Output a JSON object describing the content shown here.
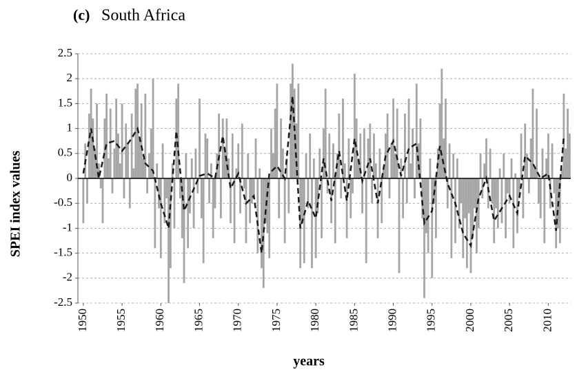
{
  "chart_data": {
    "type": "bar",
    "panel_label": "(c)",
    "title": "South Africa",
    "x_label": "years",
    "y_label": "SPEI index values",
    "xlim": [
      1949.3,
      2012.9
    ],
    "xticks": [
      1950,
      1955,
      1960,
      1965,
      1970,
      1975,
      1980,
      1985,
      1990,
      1995,
      2000,
      2005,
      2010
    ],
    "ylim": [
      -2.5,
      2.5
    ],
    "yticks": [
      2.5,
      2,
      1.5,
      1,
      0.5,
      0,
      -0.5,
      -1,
      -1.5,
      -2,
      -2.5
    ],
    "grid": true,
    "series": [
      {
        "type": "bar",
        "color": "#a6a6a6",
        "x": [
          1950,
          1950.25,
          1950.5,
          1950.75,
          1951,
          1951.25,
          1951.5,
          1951.75,
          1952,
          1952.25,
          1952.5,
          1952.75,
          1953,
          1953.25,
          1953.5,
          1953.75,
          1954,
          1954.25,
          1954.5,
          1954.75,
          1955,
          1955.25,
          1955.5,
          1955.75,
          1956,
          1956.25,
          1956.5,
          1956.75,
          1957,
          1957.25,
          1957.5,
          1957.75,
          1958,
          1958.25,
          1958.5,
          1958.75,
          1959,
          1959.25,
          1959.5,
          1959.75,
          1960,
          1960.25,
          1960.5,
          1960.75,
          1961,
          1961.25,
          1961.5,
          1961.75,
          1962,
          1962.25,
          1962.5,
          1962.75,
          1963,
          1963.25,
          1963.5,
          1963.75,
          1964,
          1964.25,
          1964.5,
          1964.75,
          1965,
          1965.25,
          1965.5,
          1965.75,
          1966,
          1966.25,
          1966.5,
          1966.75,
          1967,
          1967.25,
          1967.5,
          1967.75,
          1968,
          1968.25,
          1968.5,
          1968.75,
          1969,
          1969.25,
          1969.5,
          1969.75,
          1970,
          1970.25,
          1970.5,
          1970.75,
          1971,
          1971.25,
          1971.5,
          1971.75,
          1972,
          1972.25,
          1972.5,
          1972.75,
          1973,
          1973.25,
          1973.5,
          1973.75,
          1974,
          1974.25,
          1974.5,
          1974.75,
          1975,
          1975.25,
          1975.5,
          1975.75,
          1976,
          1976.25,
          1976.5,
          1976.75,
          1977,
          1977.25,
          1977.5,
          1977.75,
          1978,
          1978.25,
          1978.5,
          1978.75,
          1979,
          1979.25,
          1979.5,
          1979.75,
          1980,
          1980.25,
          1980.5,
          1980.75,
          1981,
          1981.25,
          1981.5,
          1981.75,
          1982,
          1982.25,
          1982.5,
          1982.75,
          1983,
          1983.25,
          1983.5,
          1983.75,
          1984,
          1984.25,
          1984.5,
          1984.75,
          1985,
          1985.25,
          1985.5,
          1985.75,
          1986,
          1986.25,
          1986.5,
          1986.75,
          1987,
          1987.25,
          1987.5,
          1987.75,
          1988,
          1988.25,
          1988.5,
          1988.75,
          1989,
          1989.25,
          1989.5,
          1989.75,
          1990,
          1990.25,
          1990.5,
          1990.75,
          1991,
          1991.25,
          1991.5,
          1991.75,
          1992,
          1992.25,
          1992.5,
          1992.75,
          1993,
          1993.25,
          1993.5,
          1993.75,
          1994,
          1994.25,
          1994.5,
          1994.75,
          1995,
          1995.25,
          1995.5,
          1995.75,
          1996,
          1996.25,
          1996.5,
          1996.75,
          1997,
          1997.25,
          1997.5,
          1997.75,
          1998,
          1998.25,
          1998.5,
          1998.75,
          1999,
          1999.25,
          1999.5,
          1999.75,
          2000,
          2000.25,
          2000.5,
          2000.75,
          2001,
          2001.25,
          2001.5,
          2001.75,
          2002,
          2002.25,
          2002.5,
          2002.75,
          2003,
          2003.25,
          2003.5,
          2003.75,
          2004,
          2004.25,
          2004.5,
          2004.75,
          2005,
          2005.25,
          2005.5,
          2005.75,
          2006,
          2006.25,
          2006.5,
          2006.75,
          2007,
          2007.25,
          2007.5,
          2007.75,
          2008,
          2008.25,
          2008.5,
          2008.75,
          2009,
          2009.25,
          2009.5,
          2009.75,
          2010,
          2010.25,
          2010.5,
          2010.75,
          2011,
          2011.25,
          2011.5,
          2011.75,
          2012,
          2012.25,
          2012.5,
          2012.75
        ],
        "values": [
          -0.9,
          0.7,
          -0.5,
          1.3,
          1.8,
          1.2,
          0.6,
          1.5,
          0.3,
          -0.2,
          -0.9,
          1.2,
          1.7,
          0.4,
          1.4,
          -0.3,
          0.6,
          1.6,
          0.9,
          0.3,
          1.5,
          -0.4,
          1.1,
          0.7,
          -0.6,
          1.3,
          0.2,
          1.8,
          1.9,
          0.8,
          1.5,
          0.4,
          1.7,
          -0.3,
          0.5,
          1.0,
          2.0,
          -1.4,
          0.3,
          -0.6,
          -1.6,
          0.7,
          -0.9,
          -0.4,
          -2.5,
          -1.8,
          0.3,
          -1.0,
          1.6,
          1.9,
          -0.4,
          -1.2,
          -2.1,
          0.5,
          -1.4,
          -0.7,
          0.4,
          -1.0,
          0.6,
          -0.3,
          1.6,
          -0.8,
          -1.7,
          0.9,
          0.8,
          -0.5,
          0.3,
          -1.2,
          -0.6,
          0.5,
          1.3,
          -0.8,
          1.2,
          0.6,
          1.2,
          0.4,
          -0.9,
          0.9,
          -1.3,
          0.2,
          0.7,
          -0.7,
          1.1,
          -0.2,
          -1.3,
          0.5,
          -0.9,
          -0.5,
          -0.4,
          0.8,
          -1.5,
          0.2,
          -1.8,
          -2.2,
          -0.9,
          -1.1,
          -1.6,
          1.0,
          0.5,
          1.4,
          1.9,
          -0.8,
          1.2,
          0.6,
          -1.3,
          0.4,
          -0.7,
          1.9,
          2.3,
          1.8,
          1.1,
          1.9,
          -1.8,
          -0.9,
          -1.7,
          0.5,
          -0.6,
          0.9,
          -1.8,
          0.4,
          -1.6,
          -0.7,
          0.6,
          -1.2,
          1.0,
          1.8,
          -0.3,
          0.9,
          -0.9,
          0.7,
          -1.3,
          0.5,
          1.3,
          -0.4,
          1.6,
          0.3,
          -1.2,
          0.8,
          -0.8,
          -0.3,
          2.1,
          1.2,
          0.4,
          0.9,
          -0.7,
          1.0,
          -1.7,
          0.8,
          1.1,
          -0.5,
          0.9,
          0.3,
          -1.2,
          0.6,
          -0.9,
          0.2,
          0.9,
          1.3,
          -0.4,
          0.7,
          1.6,
          0.5,
          1.4,
          -1.9,
          0.4,
          -0.8,
          1.3,
          -0.5,
          1.6,
          0.3,
          1.0,
          -0.4,
          1.9,
          0.7,
          1.2,
          -0.8,
          -2.4,
          -1.1,
          -1.5,
          0.4,
          -2.0,
          -0.5,
          -1.2,
          0.6,
          1.5,
          2.2,
          0.8,
          1.6,
          -0.6,
          0.7,
          -1.6,
          0.5,
          -1.3,
          0.4,
          -1.0,
          -0.5,
          -1.6,
          -0.8,
          -1.8,
          -0.7,
          -1.9,
          -1.2,
          -0.6,
          -1.5,
          -1.0,
          0.5,
          -0.4,
          0.3,
          0.8,
          -0.6,
          0.6,
          -0.5,
          -1.3,
          -0.6,
          -1.0,
          0.2,
          -0.9,
          0.5,
          -1.2,
          -0.3,
          -0.5,
          0.4,
          -1.4,
          0.1,
          -1.1,
          -0.4,
          0.9,
          -0.8,
          1.1,
          0.5,
          -0.3,
          0.8,
          1.8,
          0.2,
          1.4,
          -0.5,
          -0.8,
          0.6,
          -1.3,
          0.4,
          0.9,
          -0.6,
          0.7,
          -0.3,
          -1.4,
          -1.0,
          -1.3,
          0.2,
          1.7,
          0.6,
          1.4,
          0.9
        ]
      },
      {
        "type": "line",
        "color": "#1a1a1a",
        "x": [
          1950,
          1951,
          1952,
          1953,
          1954,
          1955,
          1956,
          1957,
          1958,
          1959,
          1960,
          1961,
          1962,
          1963,
          1964,
          1965,
          1966,
          1967,
          1968,
          1969,
          1970,
          1971,
          1972,
          1973,
          1974,
          1975,
          1976,
          1977,
          1978,
          1979,
          1980,
          1981,
          1982,
          1983,
          1984,
          1985,
          1986,
          1987,
          1988,
          1989,
          1990,
          1991,
          1992,
          1993,
          1994,
          1995,
          1996,
          1997,
          1998,
          1999,
          2000,
          2001,
          2002,
          2003,
          2004,
          2005,
          2006,
          2007,
          2008,
          2009,
          2010,
          2011,
          2012
        ],
        "values": [
          0.1,
          1.0,
          0.0,
          0.7,
          0.75,
          0.55,
          0.75,
          1.0,
          0.3,
          0.15,
          -0.5,
          -1.0,
          0.95,
          -0.65,
          -0.3,
          0.05,
          0.1,
          0.0,
          0.85,
          -0.2,
          0.1,
          -0.5,
          -0.35,
          -1.5,
          0.1,
          0.25,
          0.0,
          1.65,
          -1.0,
          -0.45,
          -0.8,
          0.4,
          -0.45,
          0.55,
          -0.45,
          0.8,
          -0.05,
          0.4,
          -0.5,
          0.45,
          0.75,
          0.05,
          0.6,
          0.7,
          -0.9,
          -0.65,
          0.65,
          -0.1,
          -0.5,
          -1.1,
          -1.35,
          -0.4,
          0.0,
          -0.85,
          -0.6,
          -0.35,
          -0.7,
          0.45,
          0.3,
          0.0,
          0.1,
          -1.05,
          0.85
        ]
      }
    ]
  }
}
